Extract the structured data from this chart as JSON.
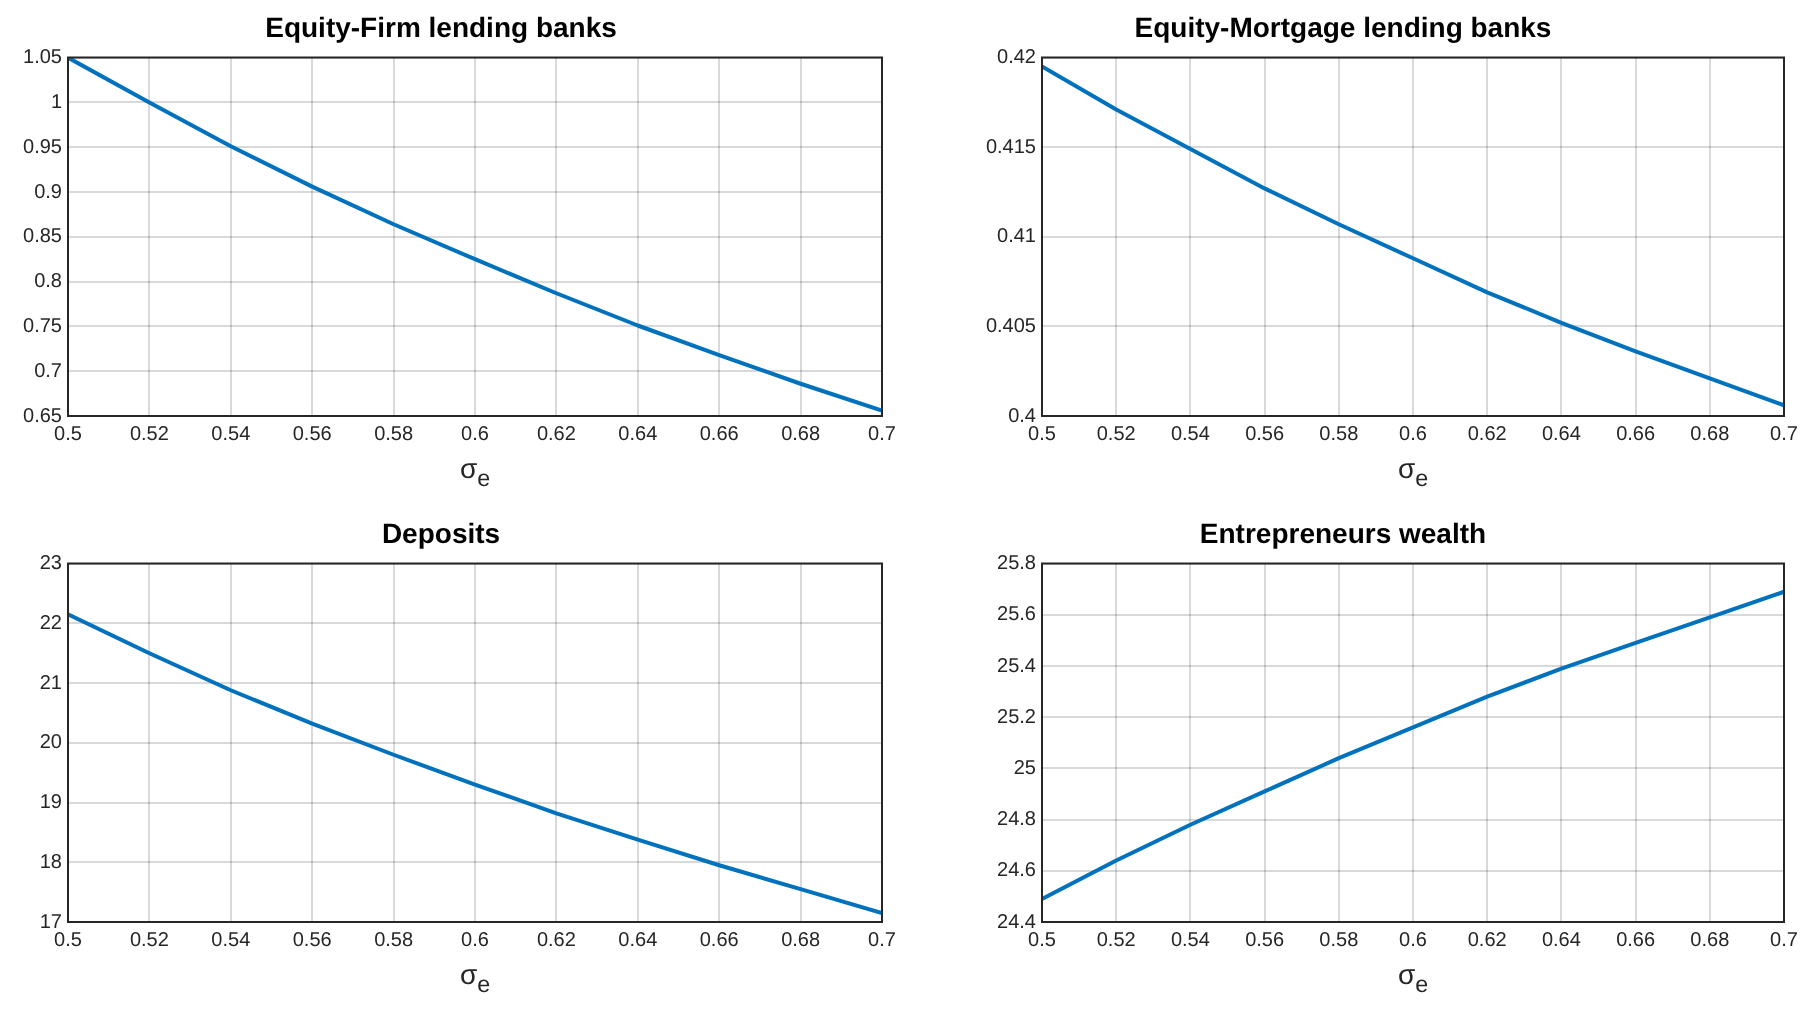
{
  "chart_data": [
    {
      "type": "line",
      "title": "Equity-Firm lending banks",
      "xlabel": "σ$_{e}$",
      "x": [
        0.5,
        0.52,
        0.54,
        0.56,
        0.58,
        0.6,
        0.62,
        0.64,
        0.66,
        0.68,
        0.7
      ],
      "series": [
        {
          "color": "#0072bd",
          "values": [
            1.05,
            1.0,
            0.951,
            0.906,
            0.864,
            0.825,
            0.787,
            0.751,
            0.718,
            0.686,
            0.656
          ]
        }
      ],
      "xlim": [
        0.5,
        0.7
      ],
      "xticks": [
        0.5,
        0.52,
        0.54,
        0.56,
        0.58,
        0.6,
        0.62,
        0.64,
        0.66,
        0.68,
        0.7
      ],
      "ylim": [
        0.65,
        1.05
      ],
      "yticks": [
        0.65,
        0.7,
        0.75,
        0.8,
        0.85,
        0.9,
        0.95,
        1,
        1.05
      ],
      "grid": true,
      "legend": false,
      "marker": "none",
      "line_style": "solid"
    },
    {
      "type": "line",
      "title": "Equity-Mortgage lending banks",
      "xlabel": "σ$_{e}$",
      "x": [
        0.5,
        0.52,
        0.54,
        0.56,
        0.58,
        0.6,
        0.62,
        0.64,
        0.66,
        0.68,
        0.7
      ],
      "series": [
        {
          "color": "#0072bd",
          "values": [
            0.4195,
            0.4171,
            0.4149,
            0.4127,
            0.4107,
            0.4088,
            0.4069,
            0.4052,
            0.4036,
            0.4021,
            0.4006
          ]
        }
      ],
      "xlim": [
        0.5,
        0.7
      ],
      "xticks": [
        0.5,
        0.52,
        0.54,
        0.56,
        0.58,
        0.6,
        0.62,
        0.64,
        0.66,
        0.68,
        0.7
      ],
      "ylim": [
        0.4,
        0.42
      ],
      "yticks": [
        0.4,
        0.405,
        0.41,
        0.415,
        0.42
      ],
      "grid": true,
      "legend": false,
      "marker": "none",
      "line_style": "solid"
    },
    {
      "type": "line",
      "title": "Deposits",
      "xlabel": "σ$_{e}$",
      "x": [
        0.5,
        0.52,
        0.54,
        0.56,
        0.58,
        0.6,
        0.62,
        0.64,
        0.66,
        0.68,
        0.7
      ],
      "series": [
        {
          "color": "#0072bd",
          "values": [
            22.15,
            21.5,
            20.88,
            20.32,
            19.8,
            19.3,
            18.82,
            18.38,
            17.95,
            17.55,
            17.15
          ]
        }
      ],
      "xlim": [
        0.5,
        0.7
      ],
      "xticks": [
        0.5,
        0.52,
        0.54,
        0.56,
        0.58,
        0.6,
        0.62,
        0.64,
        0.66,
        0.68,
        0.7
      ],
      "ylim": [
        17,
        23
      ],
      "yticks": [
        17,
        18,
        19,
        20,
        21,
        22,
        23
      ],
      "grid": true,
      "legend": false,
      "marker": "none",
      "line_style": "solid"
    },
    {
      "type": "line",
      "title": "Entrepreneurs wealth",
      "xlabel": "σ$_{e}$",
      "x": [
        0.5,
        0.52,
        0.54,
        0.56,
        0.58,
        0.6,
        0.62,
        0.64,
        0.66,
        0.68,
        0.7
      ],
      "series": [
        {
          "color": "#0072bd",
          "values": [
            24.49,
            24.64,
            24.78,
            24.91,
            25.04,
            25.16,
            25.28,
            25.39,
            25.49,
            25.59,
            25.69
          ]
        }
      ],
      "xlim": [
        0.5,
        0.7
      ],
      "xticks": [
        0.5,
        0.52,
        0.54,
        0.56,
        0.58,
        0.6,
        0.62,
        0.64,
        0.66,
        0.68,
        0.7
      ],
      "ylim": [
        24.4,
        25.8
      ],
      "yticks": [
        24.4,
        24.6,
        24.8,
        25,
        25.2,
        25.4,
        25.6,
        25.8
      ],
      "grid": true,
      "legend": false,
      "marker": "none",
      "line_style": "solid"
    }
  ]
}
